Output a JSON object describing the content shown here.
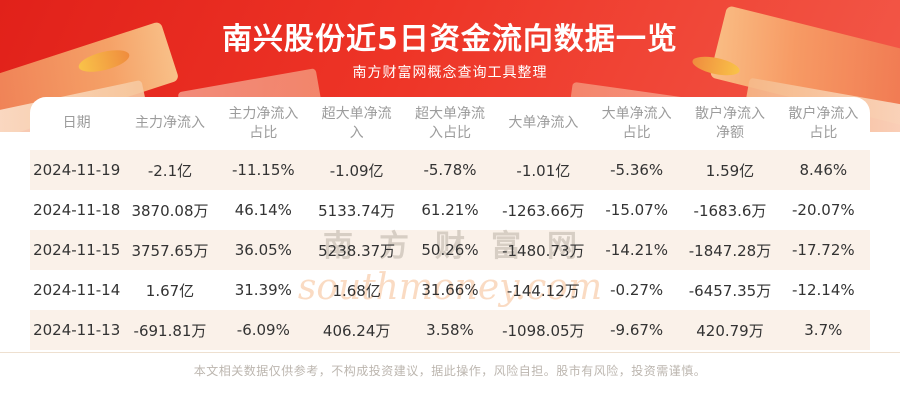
{
  "banner": {
    "title": "南兴股份近5日资金流向数据一览",
    "subtitle": "南方财富网概念查询工具整理"
  },
  "table": {
    "headers": [
      "日期",
      "主力净流入",
      "主力净流入\n占比",
      "超大单净流\n入",
      "超大单净流\n入占比",
      "大单净流入",
      "大单净流入\n占比",
      "散户净流入\n净额",
      "散户净流入\n占比"
    ]
  },
  "chart_data": {
    "type": "table",
    "title": "南兴股份近5日资金流向数据一览",
    "subtitle": "南方财富网概念查询工具整理",
    "columns": [
      "日期",
      "主力净流入",
      "主力净流入占比",
      "超大单净流入",
      "超大单净流入占比",
      "大单净流入",
      "大单净流入占比",
      "散户净流入净额",
      "散户净流入占比"
    ],
    "rows": [
      [
        "2024-11-19",
        "-2.1亿",
        "-11.15%",
        "-1.09亿",
        "-5.78%",
        "-1.01亿",
        "-5.36%",
        "1.59亿",
        "8.46%"
      ],
      [
        "2024-11-18",
        "3870.08万",
        "46.14%",
        "5133.74万",
        "61.21%",
        "-1263.66万",
        "-15.07%",
        "-1683.6万",
        "-20.07%"
      ],
      [
        "2024-11-15",
        "3757.65万",
        "36.05%",
        "5238.37万",
        "50.26%",
        "-1480.73万",
        "-14.21%",
        "-1847.28万",
        "-17.72%"
      ],
      [
        "2024-11-14",
        "1.67亿",
        "31.39%",
        "1.68亿",
        "31.66%",
        "-144.12万",
        "-0.27%",
        "-6457.35万",
        "-12.14%"
      ],
      [
        "2024-11-13",
        "-691.81万",
        "-6.09%",
        "406.24万",
        "3.58%",
        "-1098.05万",
        "-9.67%",
        "420.79万",
        "3.7%"
      ]
    ]
  },
  "watermark": {
    "line1": "南方财富网",
    "line2": "southmoney.com"
  },
  "footer": {
    "disclaimer": "本文相关数据仅供参考，不构成投资建议，据此操作，风险自担。股市有风险，投资需谨慎。"
  },
  "colors": {
    "banner_red": "#ee3527",
    "ribbon_orange": "#f6a86b",
    "row_alt_cream": "#faf1e9",
    "header_gray": "#9c9c9c",
    "cell_text": "#333333"
  }
}
